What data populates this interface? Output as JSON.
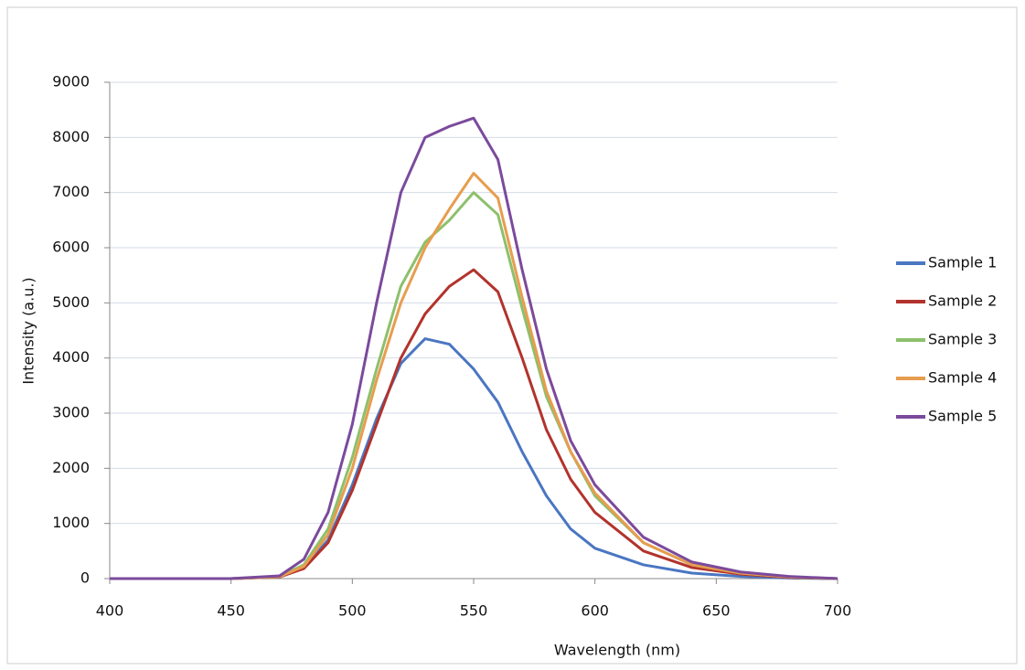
{
  "chart_data": {
    "type": "line",
    "x_label": "Wavelength (nm)",
    "y_label": "Intensity (a.u.)",
    "x": [
      400,
      450,
      470,
      480,
      490,
      500,
      510,
      520,
      530,
      540,
      550,
      560,
      570,
      580,
      590,
      600,
      620,
      640,
      660,
      680,
      700
    ],
    "series": [
      {
        "name": "Sample 1",
        "color": "#4a76c2",
        "values": [
          0,
          0,
          30,
          200,
          700,
          1700,
          2900,
          3900,
          4350,
          4250,
          3800,
          3200,
          2300,
          1500,
          900,
          550,
          250,
          100,
          40,
          10,
          0
        ]
      },
      {
        "name": "Sample 2",
        "color": "#b2332c",
        "values": [
          0,
          0,
          30,
          180,
          650,
          1600,
          2800,
          4000,
          4800,
          5300,
          5600,
          5200,
          4000,
          2700,
          1800,
          1200,
          500,
          200,
          80,
          20,
          0
        ]
      },
      {
        "name": "Sample 3",
        "color": "#8dc06b",
        "values": [
          0,
          0,
          40,
          250,
          900,
          2200,
          3800,
          5300,
          6100,
          6500,
          7000,
          6600,
          4900,
          3300,
          2300,
          1500,
          650,
          250,
          100,
          30,
          0
        ]
      },
      {
        "name": "Sample 4",
        "color": "#e79d4f",
        "values": [
          0,
          0,
          35,
          220,
          800,
          2000,
          3600,
          5000,
          6000,
          6700,
          7350,
          6900,
          5100,
          3400,
          2300,
          1550,
          650,
          250,
          100,
          30,
          0
        ]
      },
      {
        "name": "Sample 5",
        "color": "#7b4a9c",
        "values": [
          0,
          0,
          50,
          350,
          1200,
          2800,
          5000,
          7000,
          8000,
          8200,
          8350,
          7600,
          5600,
          3800,
          2500,
          1700,
          750,
          300,
          120,
          40,
          0
        ]
      }
    ],
    "xlim": [
      400,
      700
    ],
    "xticks": [
      400,
      450,
      500,
      550,
      600,
      650,
      700
    ],
    "ylim": [
      0,
      9000
    ],
    "yticks": [
      0,
      1000,
      2000,
      3000,
      4000,
      5000,
      6000,
      7000,
      8000,
      9000
    ],
    "grid": true,
    "legend": "right"
  }
}
